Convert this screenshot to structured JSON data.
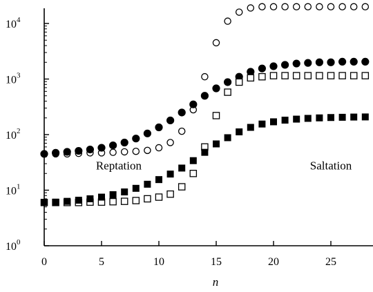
{
  "chart_data": {
    "type": "scatter",
    "xlabel": "n",
    "ylabel": "",
    "xlim": [
      -0.5,
      28.8
    ],
    "ylog": true,
    "ylim_exponent": [
      0,
      4.2
    ],
    "xticks": [
      0,
      5,
      10,
      15,
      20,
      25
    ],
    "xtick_labels": [
      "0",
      "5",
      "10",
      "15",
      "20",
      "25"
    ],
    "yticks": [
      0,
      1,
      2,
      3,
      4
    ],
    "ytick_base": "10",
    "ytick_exponents": [
      "0",
      "1",
      "2",
      "3",
      "4"
    ],
    "grid": false,
    "annotations": [
      {
        "text": "Reptation",
        "x": 6.5,
        "y": 1.45
      },
      {
        "text": "Saltation",
        "x": 25,
        "y": 1.45
      }
    ],
    "x": [
      0,
      1,
      2,
      3,
      4,
      5,
      6,
      7,
      8,
      9,
      10,
      11,
      12,
      13,
      14,
      15,
      16,
      17,
      18,
      19,
      20,
      21,
      22,
      23,
      24,
      25,
      26,
      27,
      28
    ],
    "series": [
      {
        "marker": "open-circle",
        "values": [
          45,
          45,
          45,
          46,
          47,
          47,
          48,
          49,
          50,
          52,
          58,
          72,
          115,
          280,
          1100,
          4500,
          11000,
          16000,
          19000,
          20000,
          20000,
          20000,
          20000,
          20000,
          20000,
          20000,
          20000,
          20000,
          20000
        ]
      },
      {
        "marker": "filled-circle",
        "values": [
          45,
          47,
          49,
          51,
          54,
          58,
          64,
          72,
          85,
          105,
          135,
          180,
          250,
          350,
          500,
          680,
          880,
          1100,
          1350,
          1550,
          1700,
          1800,
          1900,
          1950,
          2000,
          2000,
          2050,
          2050,
          2050
        ]
      },
      {
        "marker": "open-square",
        "values": [
          6,
          6,
          6,
          6,
          6.1,
          6.1,
          6.2,
          6.3,
          6.5,
          7,
          7.5,
          8.5,
          11.5,
          20,
          60,
          220,
          580,
          880,
          1050,
          1100,
          1150,
          1150,
          1150,
          1150,
          1150,
          1150,
          1150,
          1150,
          1150
        ]
      },
      {
        "marker": "filled-square",
        "values": [
          6,
          6.1,
          6.3,
          6.6,
          7,
          7.5,
          8.3,
          9.3,
          10.8,
          12.8,
          15.5,
          19.5,
          25,
          34,
          48,
          68,
          88,
          112,
          135,
          155,
          170,
          182,
          190,
          196,
          200,
          203,
          205,
          207,
          208
        ]
      }
    ]
  }
}
